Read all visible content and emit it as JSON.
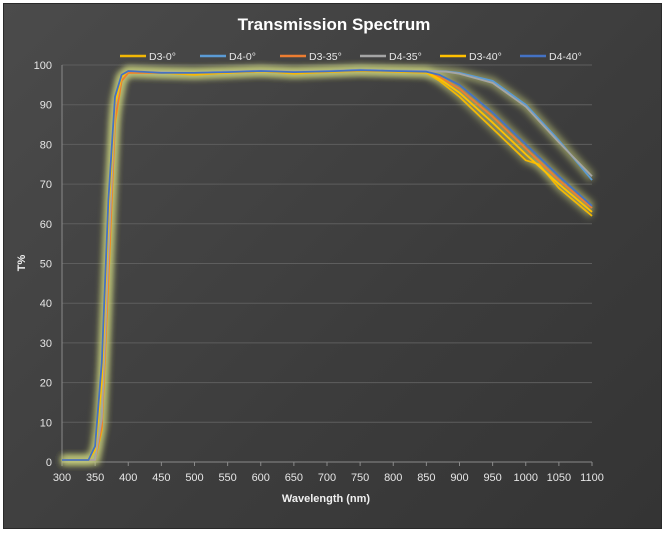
{
  "chart_data": {
    "type": "line",
    "title": "Transmission Spectrum",
    "xlabel": "Wavelength (nm)",
    "ylabel": "T%",
    "xlim": [
      300,
      1100
    ],
    "ylim": [
      0,
      100
    ],
    "x_ticks": [
      "300",
      "350",
      "400",
      "450",
      "500",
      "550",
      "600",
      "650",
      "700",
      "750",
      "800",
      "850",
      "900",
      "950",
      "1000",
      "1050",
      "1100"
    ],
    "y_ticks": [
      "0",
      "10",
      "20",
      "30",
      "40",
      "50",
      "60",
      "70",
      "80",
      "90",
      "100"
    ],
    "grid": "horizontal",
    "legend_position": "top",
    "background_color": "#3f3f3f",
    "series": [
      {
        "name": "D3-0°",
        "color": "#f2b705",
        "x": [
          300,
          350,
          360,
          370,
          380,
          390,
          400,
          450,
          500,
          550,
          600,
          650,
          700,
          750,
          800,
          850,
          870,
          900,
          950,
          1000,
          1020,
          1050,
          1100
        ],
        "values": [
          0.5,
          0.5,
          8,
          45,
          85,
          96,
          98,
          98,
          97.5,
          98,
          98.5,
          97.8,
          98.2,
          98.5,
          98.3,
          98,
          96,
          92,
          84,
          76,
          75,
          69,
          62
        ]
      },
      {
        "name": "D4-0°",
        "color": "#5b9bd5",
        "x": [
          300,
          350,
          360,
          370,
          380,
          390,
          400,
          450,
          500,
          550,
          600,
          650,
          700,
          750,
          800,
          850,
          880,
          900,
          950,
          1000,
          1050,
          1100
        ],
        "values": [
          0.5,
          0.5,
          10,
          50,
          88,
          97,
          98.5,
          98,
          98,
          98.3,
          98.5,
          98.2,
          98.5,
          98.8,
          98.6,
          98.5,
          98.4,
          98,
          96,
          90,
          81,
          71
        ]
      },
      {
        "name": "D3-35°",
        "color": "#ed7d31",
        "x": [
          300,
          350,
          360,
          370,
          380,
          390,
          400,
          450,
          500,
          550,
          600,
          650,
          700,
          750,
          800,
          850,
          870,
          900,
          950,
          1000,
          1050,
          1100
        ],
        "values": [
          0.5,
          0.5,
          9,
          47,
          86,
          96,
          98,
          98,
          97.8,
          98,
          98.4,
          98,
          98.3,
          98.6,
          98.4,
          98.2,
          97,
          94,
          87,
          79,
          71,
          64
        ]
      },
      {
        "name": "D4-35°",
        "color": "#a5a5a5",
        "x": [
          300,
          350,
          360,
          370,
          380,
          390,
          400,
          450,
          500,
          550,
          600,
          650,
          700,
          750,
          800,
          850,
          880,
          900,
          950,
          1000,
          1050,
          1100
        ],
        "values": [
          0.5,
          0.5,
          11,
          52,
          89,
          97,
          98.5,
          98.2,
          98,
          98.3,
          98.6,
          98.3,
          98.5,
          98.8,
          98.6,
          98.5,
          98.3,
          97.8,
          95.5,
          89.5,
          80.5,
          72
        ]
      },
      {
        "name": "D3-40°",
        "color": "#ffc000",
        "x": [
          300,
          340,
          350,
          360,
          370,
          380,
          390,
          400,
          450,
          500,
          550,
          600,
          650,
          700,
          750,
          800,
          850,
          870,
          900,
          950,
          1000,
          1050,
          1100
        ],
        "values": [
          0.5,
          0.5,
          3,
          20,
          62,
          90,
          97,
          98.5,
          98,
          97.8,
          98,
          98.4,
          98,
          98.3,
          98.6,
          98.4,
          98.2,
          96.5,
          93,
          85.5,
          77.5,
          70,
          63
        ]
      },
      {
        "name": "D4-40°",
        "color": "#4472c4",
        "x": [
          300,
          340,
          350,
          360,
          370,
          380,
          390,
          400,
          450,
          500,
          550,
          600,
          650,
          700,
          750,
          800,
          850,
          870,
          900,
          950,
          1000,
          1050,
          1100
        ],
        "values": [
          0.5,
          0.5,
          4,
          25,
          66,
          92,
          97.5,
          98.5,
          98,
          98,
          98.2,
          98.5,
          98.2,
          98.4,
          98.7,
          98.5,
          98.3,
          97.5,
          95,
          88,
          80,
          72,
          64.5
        ]
      }
    ]
  }
}
